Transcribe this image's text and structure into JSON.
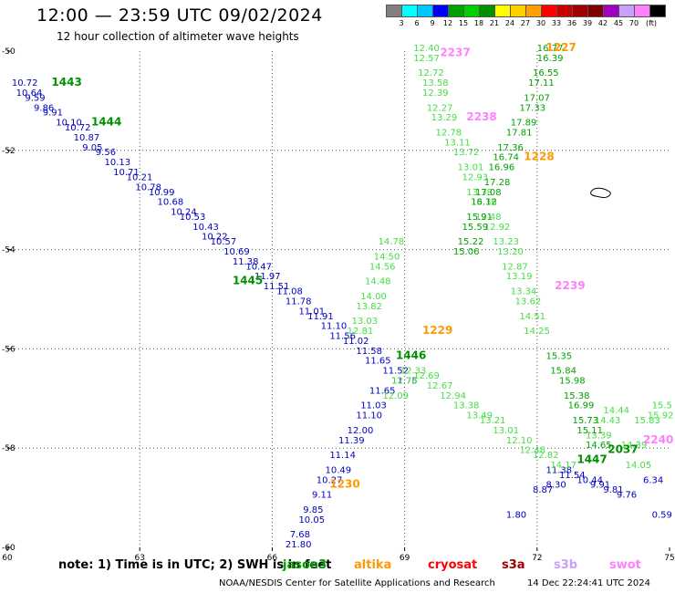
{
  "header": {
    "title": "12:00 — 23:59 UTC 09/02/2024",
    "subtitle": "12 hour collection of altimeter wave heights"
  },
  "colorbar": {
    "unit": "(ft)",
    "colors": [
      "#808080",
      "#00ffff",
      "#00c8ff",
      "#0000ff",
      "#00a000",
      "#00d000",
      "#009000",
      "#ffff00",
      "#ffd000",
      "#ffa000",
      "#ff0000",
      "#c80000",
      "#a00000",
      "#800000",
      "#a000c0",
      "#c8a0ff",
      "#ff80ff",
      "#000000"
    ],
    "ticks": [
      "3",
      "6",
      "9",
      "12",
      "15",
      "18",
      "21",
      "24",
      "27",
      "30",
      "33",
      "36",
      "39",
      "42",
      "45",
      "70"
    ]
  },
  "footer": {
    "note": "note:  1) Time is in UTC;  2) SWH is in feet",
    "satellites": [
      {
        "name": "jason3",
        "color": "#00a000"
      },
      {
        "name": "altika",
        "color": "#ff9900"
      },
      {
        "name": "cryosat",
        "color": "#ff0000"
      },
      {
        "name": "s3a",
        "color": "#a00000"
      },
      {
        "name": "s3b",
        "color": "#c8a0ff"
      },
      {
        "name": "swot",
        "color": "#ff80ff"
      }
    ],
    "credit": "NOAA/NESDIS Center for Satellite Applications and Research",
    "stamp": "14 Dec 22:24:41 UTC 2024"
  },
  "chart_data": {
    "type": "scatter",
    "xlim": [
      60,
      75
    ],
    "ylim": [
      -60,
      -50
    ],
    "x_ticks": [
      "60",
      "63",
      "66",
      "69",
      "72",
      "75"
    ],
    "y_ticks": [
      "-50",
      "-52",
      "-54",
      "-56",
      "-58",
      "-60"
    ],
    "grid": true,
    "time_labels": [
      {
        "text": "1443",
        "color": "#009000",
        "x": 61.0,
        "y": -50.7
      },
      {
        "text": "1444",
        "color": "#009000",
        "x": 61.9,
        "y": -51.5
      },
      {
        "text": "1445",
        "color": "#009000",
        "x": 65.1,
        "y": -54.7
      },
      {
        "text": "1446",
        "color": "#009000",
        "x": 68.8,
        "y": -56.2
      },
      {
        "text": "1447",
        "color": "#009000",
        "x": 72.9,
        "y": -58.3
      },
      {
        "text": "2037",
        "color": "#009000",
        "x": 73.6,
        "y": -58.1
      },
      {
        "text": "1229",
        "color": "#ff9900",
        "x": 69.4,
        "y": -55.7
      },
      {
        "text": "1228",
        "color": "#ff9900",
        "x": 71.7,
        "y": -52.2
      },
      {
        "text": "1227",
        "color": "#ff9900",
        "x": 72.2,
        "y": -50.0
      },
      {
        "text": "1230",
        "color": "#ff9900",
        "x": 67.3,
        "y": -58.8
      },
      {
        "text": "2237",
        "color": "#ff80ff",
        "x": 69.8,
        "y": -50.1
      },
      {
        "text": "2238",
        "color": "#ff80ff",
        "x": 70.4,
        "y": -51.4
      },
      {
        "text": "2239",
        "color": "#ff80ff",
        "x": 72.4,
        "y": -54.8
      },
      {
        "text": "2240",
        "color": "#ff80ff",
        "x": 74.4,
        "y": -57.9
      }
    ],
    "series": [
      {
        "name": "jason3",
        "color": "#0000c0",
        "points": [
          [
            60.1,
            -50.7,
            "10.72"
          ],
          [
            60.2,
            -50.9,
            "10.64"
          ],
          [
            60.4,
            -51.0,
            "9.59"
          ],
          [
            60.6,
            -51.2,
            "9.86"
          ],
          [
            60.8,
            -51.3,
            "9.91"
          ],
          [
            61.1,
            -51.5,
            "10.10"
          ],
          [
            61.3,
            -51.6,
            "10.72"
          ],
          [
            61.5,
            -51.8,
            "10.87"
          ],
          [
            61.7,
            -52.0,
            "9.05"
          ],
          [
            62.0,
            -52.1,
            "9.56"
          ],
          [
            62.2,
            -52.3,
            "10.13"
          ],
          [
            62.4,
            -52.5,
            "10.71"
          ],
          [
            62.7,
            -52.6,
            "10.21"
          ],
          [
            62.9,
            -52.8,
            "10.78"
          ],
          [
            63.2,
            -52.9,
            "10.99"
          ],
          [
            63.4,
            -53.1,
            "10.68"
          ],
          [
            63.7,
            -53.3,
            "10.24"
          ],
          [
            63.9,
            -53.4,
            "10.53"
          ],
          [
            64.2,
            -53.6,
            "10.43"
          ],
          [
            64.4,
            -53.8,
            "10.22"
          ],
          [
            64.6,
            -53.9,
            "10.57"
          ],
          [
            64.9,
            -54.1,
            "10.69"
          ],
          [
            65.1,
            -54.3,
            "11.38"
          ],
          [
            65.4,
            -54.4,
            "10.47"
          ],
          [
            65.6,
            -54.6,
            "11.97"
          ],
          [
            65.8,
            -54.8,
            "11.51"
          ],
          [
            66.1,
            -54.9,
            "11.08"
          ],
          [
            66.3,
            -55.1,
            "11.78"
          ],
          [
            66.6,
            -55.3,
            "11.01"
          ],
          [
            66.8,
            -55.4,
            "11.91"
          ],
          [
            67.1,
            -55.6,
            "11.10"
          ],
          [
            67.3,
            -55.8,
            "11.56"
          ],
          [
            67.6,
            -55.9,
            "11.02"
          ],
          [
            67.9,
            -56.1,
            "11.58"
          ],
          [
            68.1,
            -56.3,
            "11.65"
          ],
          [
            68.5,
            -56.5,
            "11.52"
          ],
          [
            68.7,
            -56.7,
            "11.75"
          ],
          [
            72.2,
            -58.5,
            "11.38"
          ],
          [
            72.5,
            -58.6,
            "11.54"
          ],
          [
            72.9,
            -58.7,
            "10.44"
          ],
          [
            73.2,
            -58.8,
            "9.91"
          ],
          [
            73.5,
            -58.9,
            "9.81"
          ],
          [
            73.8,
            -59.0,
            "9.76"
          ],
          [
            72.2,
            -58.8,
            "8.30"
          ],
          [
            71.9,
            -58.9,
            "8.87"
          ],
          [
            74.4,
            -58.7,
            "6.34"
          ],
          [
            71.3,
            -59.4,
            "1.80"
          ],
          [
            74.6,
            -59.4,
            "0.59"
          ]
        ]
      },
      {
        "name": "altika",
        "color": "#0000c0",
        "points": [
          [
            68.2,
            -56.9,
            "11.65"
          ],
          [
            68.0,
            -57.2,
            "11.03"
          ],
          [
            67.9,
            -57.4,
            "11.10"
          ],
          [
            67.7,
            -57.7,
            "12.00"
          ],
          [
            67.5,
            -57.9,
            "11.39"
          ],
          [
            67.3,
            -58.2,
            "11.14"
          ],
          [
            67.2,
            -58.5,
            "10.49"
          ],
          [
            67.0,
            -58.7,
            "10.27"
          ],
          [
            66.9,
            -59.0,
            "9.11"
          ],
          [
            66.7,
            -59.3,
            "9.85"
          ],
          [
            66.6,
            -59.5,
            "10.05"
          ],
          [
            66.4,
            -59.8,
            "7.68"
          ],
          [
            66.3,
            -60.0,
            "21.80"
          ]
        ]
      },
      {
        "name": "altika-high",
        "color": "#44dd44",
        "points": [
          [
            69.2,
            -50.0,
            "12.40"
          ],
          [
            69.2,
            -50.2,
            "12.57"
          ],
          [
            69.3,
            -50.5,
            "12.72"
          ],
          [
            69.4,
            -50.7,
            "13.58"
          ],
          [
            69.4,
            -50.9,
            "12.39"
          ],
          [
            69.5,
            -51.2,
            "12.27"
          ],
          [
            69.6,
            -51.4,
            "13.29"
          ],
          [
            69.7,
            -51.7,
            "12.78"
          ],
          [
            69.9,
            -51.9,
            "13.11"
          ],
          [
            70.1,
            -52.1,
            "13.72"
          ],
          [
            70.2,
            -52.4,
            "13.01"
          ],
          [
            70.3,
            -52.6,
            "12.93"
          ],
          [
            70.4,
            -52.9,
            "13.38"
          ],
          [
            70.5,
            -53.1,
            "13.36"
          ],
          [
            70.6,
            -53.4,
            "12.48"
          ],
          [
            70.8,
            -53.6,
            "12.92"
          ],
          [
            71.0,
            -53.9,
            "13.23"
          ],
          [
            71.1,
            -54.1,
            "13.20"
          ],
          [
            71.2,
            -54.4,
            "12.87"
          ],
          [
            71.3,
            -54.6,
            "13.19"
          ],
          [
            71.4,
            -54.9,
            "13.34"
          ],
          [
            71.5,
            -55.1,
            "13.62"
          ],
          [
            71.6,
            -55.4,
            "14.51"
          ],
          [
            71.7,
            -55.7,
            "14.25"
          ],
          [
            68.9,
            -56.5,
            "12.33"
          ],
          [
            68.7,
            -56.7,
            "12.76"
          ],
          [
            68.5,
            -57.0,
            "12.09"
          ],
          [
            68.4,
            -53.9,
            "14.78"
          ],
          [
            68.3,
            -54.2,
            "14.50"
          ],
          [
            68.2,
            -54.4,
            "14.56"
          ],
          [
            68.1,
            -54.7,
            "14.48"
          ],
          [
            68.0,
            -55.0,
            "14.00"
          ],
          [
            67.9,
            -55.2,
            "13.82"
          ],
          [
            67.8,
            -55.5,
            "13.03"
          ],
          [
            67.7,
            -55.7,
            "12.81"
          ],
          [
            69.2,
            -56.6,
            "12.69"
          ],
          [
            69.5,
            -56.8,
            "12.67"
          ],
          [
            69.8,
            -57.0,
            "12.94"
          ],
          [
            70.1,
            -57.2,
            "13.38"
          ],
          [
            70.4,
            -57.4,
            "13.49"
          ],
          [
            70.7,
            -57.5,
            "13.21"
          ],
          [
            71.0,
            -57.7,
            "13.01"
          ],
          [
            71.3,
            -57.9,
            "12.10"
          ],
          [
            71.6,
            -58.1,
            "12.48"
          ],
          [
            71.9,
            -58.2,
            "12.82"
          ],
          [
            72.3,
            -58.4,
            "14.17"
          ],
          [
            73.5,
            -57.3,
            "14.44"
          ],
          [
            73.3,
            -57.5,
            "14.43"
          ],
          [
            73.1,
            -57.8,
            "13.39"
          ],
          [
            73.9,
            -58.0,
            "14.39"
          ],
          [
            74.0,
            -58.4,
            "14.05"
          ],
          [
            74.2,
            -57.5,
            "15.83"
          ],
          [
            74.5,
            -57.4,
            "15.92"
          ],
          [
            74.6,
            -57.2,
            "15.5"
          ]
        ]
      },
      {
        "name": "jason3-high",
        "color": "#00a000",
        "points": [
          [
            72.0,
            -50.0,
            "16.77"
          ],
          [
            72.0,
            -50.2,
            "16.39"
          ],
          [
            71.9,
            -50.5,
            "16.55"
          ],
          [
            71.8,
            -50.7,
            "17.11"
          ],
          [
            71.7,
            -51.0,
            "17.07"
          ],
          [
            71.6,
            -51.2,
            "17.33"
          ],
          [
            71.4,
            -51.5,
            "17.89"
          ],
          [
            71.3,
            -51.7,
            "17.81"
          ],
          [
            71.1,
            -52.0,
            "17.36"
          ],
          [
            71.0,
            -52.2,
            "16.74"
          ],
          [
            70.9,
            -52.4,
            "16.96"
          ],
          [
            70.8,
            -52.7,
            "17.28"
          ],
          [
            70.6,
            -52.9,
            "17.08"
          ],
          [
            70.5,
            -53.1,
            "16.12"
          ],
          [
            70.4,
            -53.4,
            "15.91"
          ],
          [
            70.3,
            -53.6,
            "15.59"
          ],
          [
            70.2,
            -53.9,
            "15.22"
          ],
          [
            70.1,
            -54.1,
            "15.06"
          ],
          [
            72.2,
            -56.2,
            "15.35"
          ],
          [
            72.3,
            -56.5,
            "15.84"
          ],
          [
            72.5,
            -56.7,
            "15.98"
          ],
          [
            72.6,
            -57.0,
            "15.38"
          ],
          [
            72.7,
            -57.2,
            "16.99"
          ],
          [
            72.8,
            -57.5,
            "15.73"
          ],
          [
            72.9,
            -57.7,
            "15.11"
          ],
          [
            73.1,
            -58.0,
            "14.65"
          ]
        ]
      }
    ]
  }
}
